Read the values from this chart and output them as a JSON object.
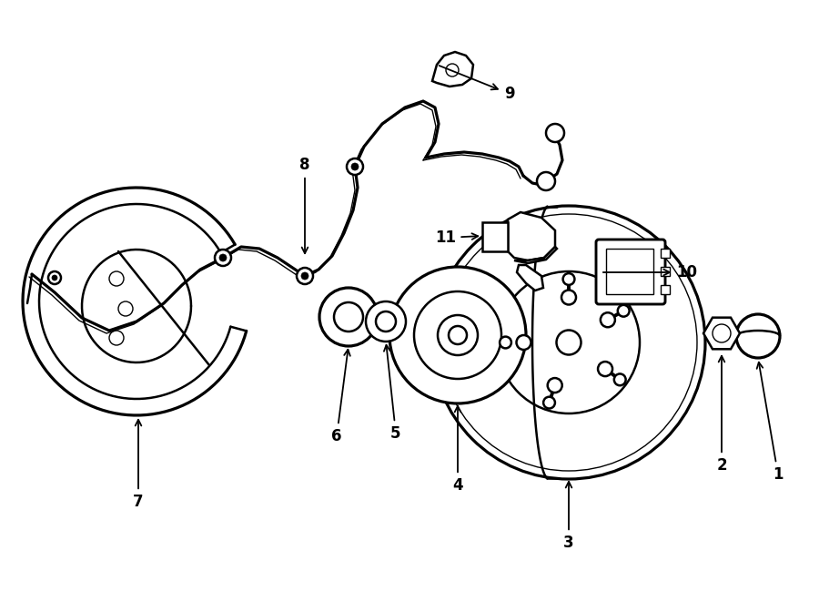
{
  "background_color": "#ffffff",
  "line_color": "#000000",
  "lw_main": 1.8,
  "lw_thin": 1.0,
  "fig_width": 9.0,
  "fig_height": 6.61,
  "dpi": 100,
  "xlim": [
    0,
    900
  ],
  "ylim": [
    0,
    661
  ]
}
